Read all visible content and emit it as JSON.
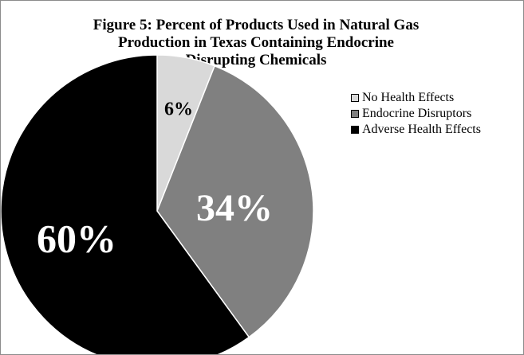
{
  "chart_data": {
    "type": "pie",
    "title_lines": [
      "Figure 5: Percent of Products Used in Natural Gas",
      "Production in Texas Containing Endocrine",
      "Disrupting Chemicals"
    ],
    "slices": [
      {
        "name": "No Health Effects",
        "value": 6,
        "label": "6%",
        "color": "#d9d9d9",
        "label_color": "#000000"
      },
      {
        "name": "Endocrine Disruptors",
        "value": 34,
        "label": "34%",
        "color": "#808080",
        "label_color": "#ffffff"
      },
      {
        "name": "Adverse Health Effects",
        "value": 60,
        "label": "60%",
        "color": "#000000",
        "label_color": "#ffffff"
      }
    ],
    "legend_position": "right"
  }
}
